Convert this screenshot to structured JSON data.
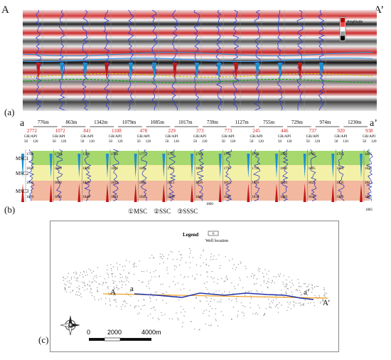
{
  "figure": {
    "panel_a": {
      "label": "(a)",
      "endpoint_left": "A",
      "endpoint_right": "A’",
      "colorbar_title": "Amplitude",
      "colorbar_colors": [
        "#b40000",
        "#ff4040",
        "#ffffff",
        "#9a9a9a",
        "#000000"
      ],
      "horizon_colors": [
        "#2f8fd6",
        "#3aa0ff",
        "#c8c800",
        "#00b000"
      ]
    },
    "panel_b": {
      "label": "(b)",
      "endpoint_left": "a",
      "endpoint_right": "a’",
      "spacings": [
        "776m",
        "863m",
        "1342m",
        "1079m",
        "1085m",
        "1017m",
        "739m",
        "1127m",
        "755m",
        "729m",
        "974m",
        "1230m"
      ],
      "wells": [
        "2772",
        "1072",
        "841",
        "1108",
        "478",
        "229",
        "373",
        "773",
        "245",
        "446",
        "737",
        "920",
        "938"
      ],
      "log_header": "GR/API",
      "scale_min": "50",
      "scale_max": "120",
      "zones": [
        "MSC1",
        "MSC2",
        "MSC3"
      ],
      "zone_colors": [
        "#a7d86e",
        "#f3f0a8",
        "#f2b8a0"
      ],
      "depth_labels": [
        [
          "1790",
          "1810",
          "1835",
          "1850"
        ],
        [
          "1790",
          "1810",
          "1820",
          "1830"
        ],
        [
          "1780",
          "1800",
          "1820",
          "1840"
        ],
        [
          "1780",
          "1800",
          "1820",
          "1840"
        ],
        [
          "1775",
          "1805",
          "1825",
          "1845"
        ],
        [
          "1775",
          "1795",
          "1815",
          "1840"
        ],
        [
          "1780",
          "1800",
          "1820",
          "1840"
        ],
        [
          "1775",
          "1795",
          "1815",
          "1835"
        ],
        [
          "1770",
          "1790",
          "1810",
          "1830"
        ],
        [
          "1780",
          "1800",
          "1820",
          "1840"
        ],
        [
          "1785",
          "1805",
          "1825",
          "1845"
        ],
        [
          "1795",
          "1815",
          "1835",
          "1850"
        ],
        [
          "1805",
          "1825",
          "1845",
          "1865"
        ]
      ],
      "extra_depths": [
        "1860",
        "1885"
      ],
      "legend_items": [
        "①MSC",
        "②SSC",
        "③SSSC"
      ]
    },
    "panel_c": {
      "label": "(c)",
      "legend_title": "Legend",
      "legend_item": "Well location",
      "point_A": "A",
      "point_a": "a",
      "point_a_prime": "a’",
      "point_A_prime": "A’",
      "scale_ticks": [
        "0",
        "2000",
        "4000m"
      ],
      "north_label": "N",
      "section_line_color": "#2233aa",
      "seismic_line_color": "#f0a020"
    }
  }
}
